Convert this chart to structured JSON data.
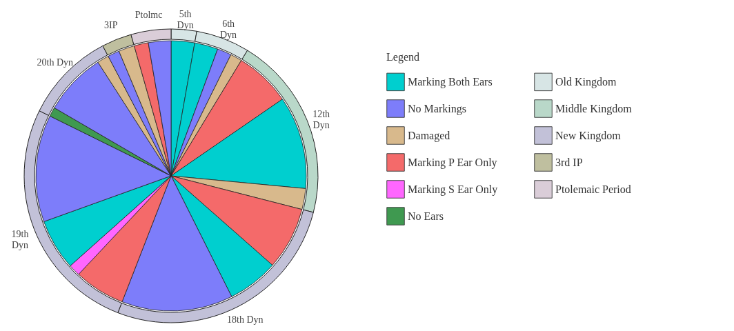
{
  "chart_data": [
    {
      "type": "pie",
      "legend": "right",
      "legend_title": "Legend",
      "categories": [
        "Marking Both Ears",
        null,
        "No Markings",
        "Damaged",
        "Marking P Ear Only",
        null,
        null,
        null,
        null,
        null,
        null,
        "Marking S Ear Only",
        null,
        null,
        "No Ears",
        null,
        null,
        null,
        null,
        null,
        null
      ],
      "values": [
        2.8,
        2.8,
        1.7,
        1.4,
        6.7,
        11.1,
        2.5,
        7.5,
        6.1,
        13.3,
        6.1,
        1.4,
        6.1,
        12.8,
        1.1,
        7.5,
        1.4,
        1.4,
        1.9,
        1.7,
        2.7
      ],
      "colors": [
        "#00cfcf",
        "#00cfcf",
        "#7d7dfa",
        "#d8b98c",
        "#f46a6a",
        "#00cfcf",
        "#d8b98c",
        "#f46a6a",
        "#00cfcf",
        "#7d7dfa",
        "#f46a6a",
        "#ff66ff",
        "#00cfcf",
        "#7d7dfa",
        "#3f9950",
        "#7d7dfa",
        "#d8b98c",
        "#7d7dfa",
        "#d8b98c",
        "#f46a6a",
        "#7d7dfa"
      ]
    },
    {
      "type": "donut",
      "legend": "right",
      "categories": [
        "Old Kingdom",
        null,
        "Middle Kingdom",
        "New Kingdom",
        null,
        null,
        "3rd IP",
        "Ptolemaic Period"
      ],
      "values": [
        2.8,
        5.9,
        20.3,
        26.9,
        26.4,
        10.0,
        3.3,
        4.4
      ],
      "annotations": [
        "5th\nDyn",
        "6th\nDyn",
        "12th\nDyn",
        "18th Dyn",
        "19th\nDyn",
        "20th Dyn",
        "3IP",
        "Ptolmc"
      ],
      "colors": [
        "#d7e5e5",
        "#d7e5e5",
        "#b9d8c9",
        "#c2c1d8",
        "#c2c1d8",
        "#c2c1d8",
        "#bfbf9f",
        "#dacdd8"
      ]
    }
  ]
}
